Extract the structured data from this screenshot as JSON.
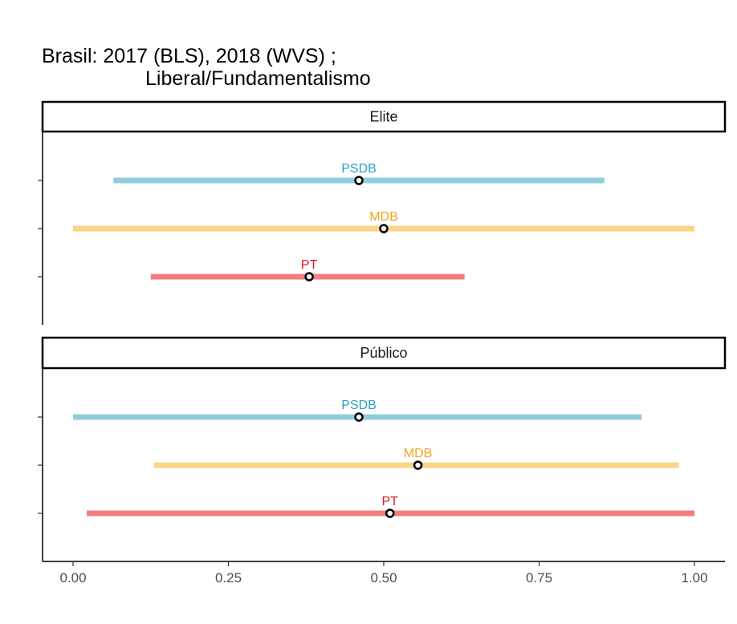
{
  "title_line1": "Brasil: 2017 (BLS), 2018 (WVS) ;",
  "title_line2": "Liberal/Fundamentalismo",
  "colors": {
    "PSDB": "#2a9fbc",
    "MDB": "#f2a51d",
    "PT": "#e0191d",
    "PSDB_bar": "#92cddb",
    "MDB_bar": "#fad588",
    "PT_bar": "#f47d7e"
  },
  "chart_data": {
    "type": "dot-range",
    "xlim": [
      0,
      1
    ],
    "x_ticks": [
      0.0,
      0.25,
      0.5,
      0.75,
      1.0
    ],
    "x_tick_labels": [
      "0.00",
      "0.25",
      "0.50",
      "0.75",
      "1.00"
    ],
    "categories": [
      "PSDB",
      "MDB",
      "PT"
    ],
    "panels": [
      {
        "strip": "Elite",
        "rows": [
          {
            "party": "PSDB",
            "low": 0.065,
            "high": 0.855,
            "point": 0.46
          },
          {
            "party": "MDB",
            "low": 0.0,
            "high": 1.0,
            "point": 0.5
          },
          {
            "party": "PT",
            "low": 0.125,
            "high": 0.63,
            "point": 0.38
          }
        ]
      },
      {
        "strip": "Público",
        "rows": [
          {
            "party": "PSDB",
            "low": 0.0,
            "high": 0.915,
            "point": 0.46
          },
          {
            "party": "MDB",
            "low": 0.13,
            "high": 0.975,
            "point": 0.555
          },
          {
            "party": "PT",
            "low": 0.022,
            "high": 1.0,
            "point": 0.51
          }
        ]
      }
    ]
  }
}
